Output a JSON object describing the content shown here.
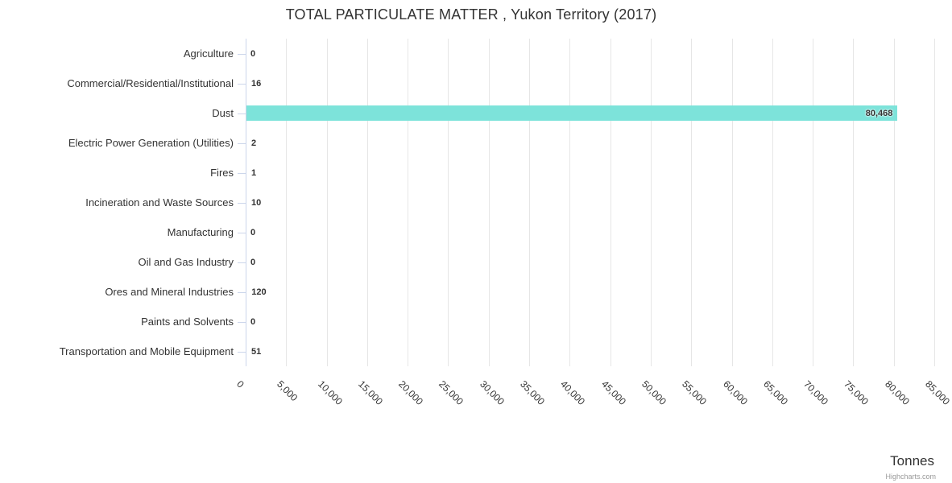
{
  "chart_data": {
    "type": "bar",
    "orientation": "horizontal",
    "title": "TOTAL PARTICULATE MATTER , Yukon Territory (2017)",
    "categories": [
      "Agriculture",
      "Commercial/Residential/Institutional",
      "Dust",
      "Electric Power Generation (Utilities)",
      "Fires",
      "Incineration and Waste Sources",
      "Manufacturing",
      "Oil and Gas Industry",
      "Ores and Mineral Industries",
      "Paints and Solvents",
      "Transportation and Mobile Equipment"
    ],
    "values": [
      0,
      16,
      80468,
      2,
      1,
      10,
      0,
      0,
      120,
      0,
      51
    ],
    "value_labels": [
      "0",
      "16",
      "80,468",
      "2",
      "1",
      "10",
      "0",
      "0",
      "120",
      "0",
      "51"
    ],
    "axis_min": 0,
    "axis_max": 85000,
    "tick_step": 5000,
    "x_ticks": [
      "0",
      "5,000",
      "10,000",
      "15,000",
      "20,000",
      "25,000",
      "30,000",
      "35,000",
      "40,000",
      "45,000",
      "50,000",
      "55,000",
      "60,000",
      "65,000",
      "70,000",
      "75,000",
      "80,000",
      "85,000"
    ],
    "xlabel": "Tonnes",
    "ylabel": "",
    "legend": false,
    "grid": true,
    "bar_color": "#7de3da",
    "gridline_color": "#e6e6e6",
    "axis_line_color": "#ccd6eb",
    "credit": "Highcharts.com"
  }
}
